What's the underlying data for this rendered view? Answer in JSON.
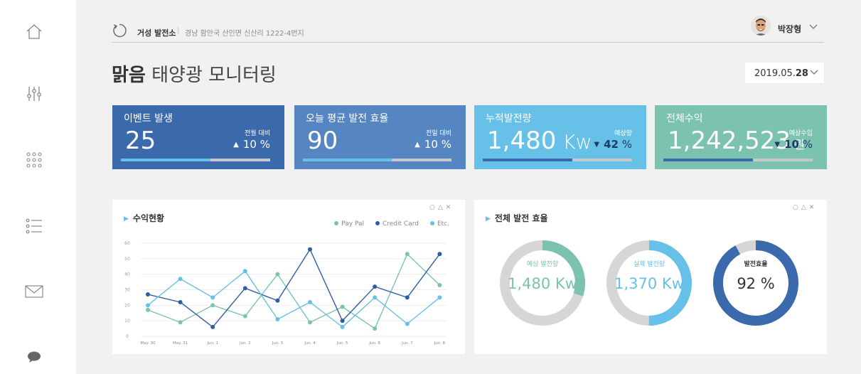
{
  "header": {
    "site_name": "거성 발전소",
    "separator": "|",
    "site_address": "경남 함안국 산인면 신산리 1222-4번지",
    "user_name": "박장형"
  },
  "page": {
    "title_bold": "맑음",
    "title_rest": " 태양광 모니터링",
    "date_prefix": "2019.05.",
    "date_day": "28"
  },
  "cards": [
    {
      "title": "이벤트 발생",
      "value": "25",
      "unit": "",
      "change_label": "전월 대비",
      "arrow": "▲",
      "change": "10",
      "change_unit": " %",
      "progress": 0.6,
      "color": "#3a6aab",
      "bar_color": "#67c0e8"
    },
    {
      "title": "오늘 평균 발전 효율",
      "value": "90",
      "unit": "",
      "change_label": "전일 대비",
      "arrow": "▲",
      "change": "10",
      "change_unit": " %",
      "progress": 0.6,
      "color": "#5686c2",
      "bar_color": "#67c0e8"
    },
    {
      "title": "누적발전량",
      "value": "1,480",
      "unit": " Kw",
      "change_label": "예상량",
      "arrow": "▼",
      "change": "42",
      "change_unit": " %",
      "progress": 0.6,
      "color": "#67c0e8",
      "bar_color": "#3a6aab"
    },
    {
      "title": "전체수익",
      "value": "1,242,523",
      "unit": " 원",
      "change_label": "예상수입",
      "arrow": "▼",
      "change": "10",
      "change_unit": " %",
      "progress": 0.6,
      "color": "#7bc2b0",
      "bar_color": "#3a6aab"
    }
  ],
  "revenue_panel": {
    "title": "수익현황",
    "controls": "○△✕"
  },
  "efficiency_panel": {
    "title": "전체 발전 효율",
    "controls": "○△✕",
    "donuts": [
      {
        "label": "예상 발전량",
        "value": "1,480",
        "unit": " Kw",
        "fraction": 0.3,
        "color": "#7bc2b0"
      },
      {
        "label": "실제 발전량",
        "value": "1,370",
        "unit": " Kw",
        "fraction": 0.5,
        "color": "#67c0e8"
      },
      {
        "label": "발전효율",
        "value": "92",
        "unit": " %",
        "fraction": 0.92,
        "color": "#3a6aab"
      }
    ]
  },
  "chart_data": {
    "type": "line",
    "title": "수익현황",
    "categories": [
      "May. 30",
      "May. 31",
      "Jun. 1",
      "Jun. 2",
      "Jun. 3",
      "Jun. 4",
      "Jun. 5",
      "Jun. 6",
      "Jun. 7",
      "Jun. 8"
    ],
    "yticks": [
      0,
      10,
      20,
      30,
      40,
      50,
      60
    ],
    "ylim": [
      0,
      60
    ],
    "grid": true,
    "legend_position": "top-right",
    "series": [
      {
        "name": "Pay Pal",
        "color": "#7bc2b0",
        "values": [
          17,
          9,
          20,
          13,
          40,
          9,
          19,
          5,
          53,
          33
        ]
      },
      {
        "name": "Credit Card",
        "color": "#2e5e9f",
        "values": [
          27,
          22,
          6,
          31,
          23,
          56,
          10,
          32,
          25,
          53
        ]
      },
      {
        "name": "Etc.",
        "color": "#67c0e8",
        "values": [
          20,
          37,
          25,
          42,
          11,
          22,
          6,
          25,
          8,
          25
        ]
      }
    ]
  }
}
